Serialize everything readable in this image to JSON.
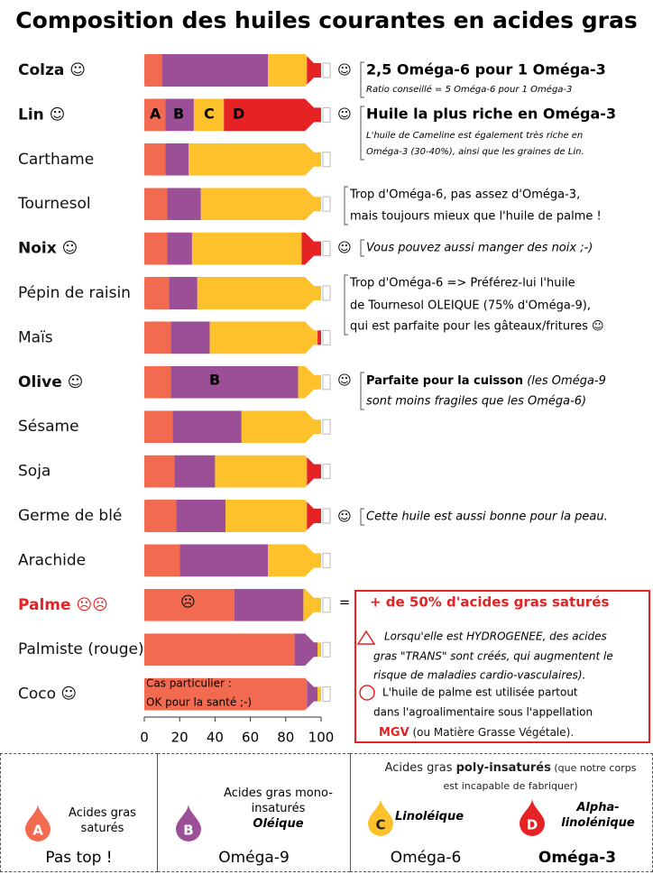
{
  "chart_data": {
    "type": "bar",
    "orientation": "horizontal",
    "stacked": true,
    "title": "Composition des huiles courantes en acides gras",
    "categories": [
      "Colza ☺",
      "Lin ☺",
      "Carthame",
      "Tournesol",
      "Noix ☺",
      "Pépin de raisin",
      "Maïs",
      "Olive ☺",
      "Sésame",
      "Soja",
      "Germe de blé",
      "Arachide",
      "Palme ☹☹",
      "Palmiste (rouge)",
      "Coco ☺"
    ],
    "series": [
      {
        "name": "Acides gras saturés",
        "letter": "A",
        "subname": null,
        "omega": "Pas top !",
        "color": "#f26b50",
        "values": [
          10,
          12,
          12,
          13,
          13,
          14,
          15,
          15,
          16,
          17,
          18,
          20,
          51,
          85,
          92
        ]
      },
      {
        "name": "Acides gras mono-insaturés",
        "letter": "B",
        "subname": "Oléique",
        "omega": "Oméga-9",
        "color": "#9b4f96",
        "values": [
          60,
          16,
          13,
          19,
          14,
          16,
          22,
          72,
          39,
          23,
          28,
          50,
          39,
          13,
          6
        ]
      },
      {
        "name": "Linoléique",
        "letter": "C",
        "subname": null,
        "omega": "Oméga-6",
        "color": "#fcc12b",
        "values": [
          22,
          17,
          75,
          68,
          62,
          70,
          61,
          13,
          45,
          52,
          46,
          30,
          10,
          2,
          2
        ]
      },
      {
        "name": "Alpha-linolénique",
        "letter": "D",
        "subname": null,
        "omega": "Oméga-3",
        "color": "#e52224",
        "values": [
          8,
          55,
          null,
          null,
          11,
          null,
          2,
          null,
          null,
          8,
          8,
          null,
          null,
          null,
          null
        ]
      }
    ],
    "poly_header": [
      "Acides gras ",
      "poly-insaturés",
      " (que notre corps est incapable de fabriquer)"
    ],
    "xlim": [
      0,
      100
    ],
    "xticks": [
      0,
      20,
      40,
      60,
      80,
      100
    ],
    "bar_labels": [
      "A",
      "B",
      "C",
      "D",
      "B",
      "☹",
      "Cas particulier :",
      "OK pour la santé ;-)"
    ],
    "annotations": [
      {
        "marker": "☺",
        "lines": [
          "2,5 Oméga-6 pour 1 Oméga-3",
          "Ratio conseillé = 5 Oméga-6 pour 1 Oméga-3"
        ]
      },
      {
        "marker": "☺",
        "lines": [
          "Huile la plus riche en Oméga-3",
          "L'huile de Cameline est également très riche en",
          "Oméga-3 (30-40%), ainsi que les graines de Lin."
        ]
      },
      {
        "marker": null,
        "lines": [
          "Trop d'Oméga-6, pas assez d'Oméga-3,",
          "mais toujours mieux que l'huile de palme !"
        ]
      },
      {
        "marker": "☺",
        "lines": [
          "Vous pouvez aussi manger des noix ;-)"
        ]
      },
      {
        "marker": null,
        "lines": [
          "Trop d'Oméga-6 => Préférez-lui l'huile",
          "de Tournesol OLEIQUE (75% d'Oméga-9),",
          "qui est parfaite pour les gâteaux/fritures ☺"
        ]
      },
      {
        "marker": "☺",
        "lines": [
          [
            "Parfaite pour la cuisson",
            " (les Oméga-9"
          ],
          "sont moins fragiles que les Oméga-6)"
        ]
      },
      {
        "marker": "☺",
        "lines": [
          "Cette huile est aussi bonne pour la peau."
        ]
      },
      {
        "marker": "=",
        "lines": [
          "+ de 50% d'acides gras saturés",
          "Lorsqu'elle est HYDROGENEE, des acides",
          "gras \"TRANS\" sont créés, qui augmentent le",
          "risque de maladies cardio-vasculaires).",
          "L'huile de palme est utilisée partout",
          "dans l'agroalimentaire sous l'appellation",
          [
            "MGV",
            " (ou Matière Grasse Végétale)."
          ]
        ]
      }
    ]
  }
}
